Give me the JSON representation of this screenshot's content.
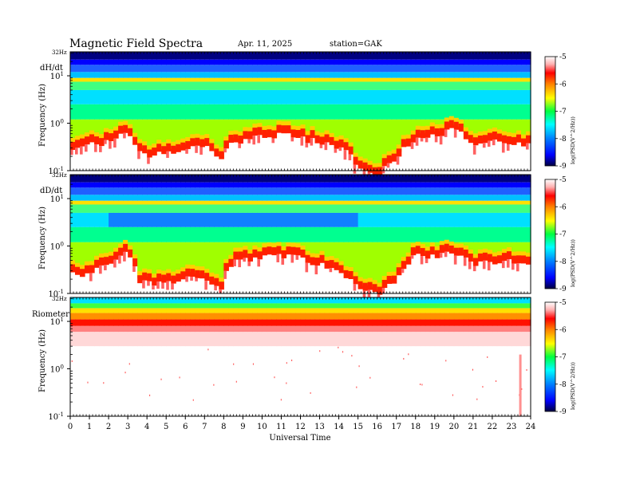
{
  "header": {
    "title": "Magnetic  Field  Spectra",
    "date": "Apr. 11, 2025",
    "station": "station=GAK"
  },
  "xaxis": {
    "label": "Universal  Time",
    "ticks": [
      "0",
      "1",
      "2",
      "3",
      "4",
      "5",
      "6",
      "7",
      "8",
      "9",
      "10",
      "11",
      "12",
      "13",
      "14",
      "15",
      "16",
      "17",
      "18",
      "19",
      "20",
      "21",
      "22",
      "23",
      "24"
    ]
  },
  "yaxis": {
    "label": "Frequency  (Hz)",
    "top_label": "32Hz",
    "ticks": [
      {
        "base": "10",
        "exp": "1"
      },
      {
        "base": "10",
        "exp": "0"
      },
      {
        "base": "10",
        "exp": "-1"
      }
    ]
  },
  "colorbar": {
    "ticks": [
      "-5",
      "-6",
      "-7",
      "-8",
      "-9"
    ],
    "title": "log(PSD(V^2/Hz))",
    "colors": [
      "#000080",
      "#0000ff",
      "#00a0ff",
      "#00ffff",
      "#00ff66",
      "#66ff00",
      "#ffff00",
      "#ff9900",
      "#ff0000",
      "#ffb0b0",
      "#ffffff"
    ]
  },
  "chart_data": [
    {
      "type": "heatmap",
      "panel": "dH/dt",
      "x_unit": "hours UT",
      "xlim": [
        0,
        24
      ],
      "ylim_hz": [
        0.1,
        32
      ],
      "y_scale": "log",
      "zlim": [
        -9,
        -5
      ],
      "z_label": "log(PSD(V^2/Hz))",
      "approx_boundary_freq_hz": {
        "hours": [
          0,
          1,
          2,
          2.5,
          3,
          3.5,
          4,
          5,
          6,
          7,
          7.8,
          8.5,
          9.5,
          10.5,
          11,
          12,
          13,
          14,
          15,
          16,
          17,
          18,
          19,
          20,
          21,
          22,
          23,
          24
        ],
        "freq": [
          0.4,
          0.45,
          0.5,
          0.6,
          0.9,
          0.3,
          0.25,
          0.3,
          0.35,
          0.4,
          0.2,
          0.5,
          0.6,
          0.7,
          0.75,
          0.6,
          0.5,
          0.4,
          0.15,
          0.1,
          0.2,
          0.6,
          0.7,
          0.9,
          0.5,
          0.55,
          0.5,
          0.45
        ]
      }
    },
    {
      "type": "heatmap",
      "panel": "dD/dt",
      "x_unit": "hours UT",
      "xlim": [
        0,
        24
      ],
      "ylim_hz": [
        0.1,
        32
      ],
      "y_scale": "log",
      "zlim": [
        -9,
        -5
      ],
      "z_label": "log(PSD(V^2/Hz))",
      "approx_boundary_freq_hz": {
        "hours": [
          0,
          1,
          2,
          2.5,
          3,
          3.5,
          4,
          5,
          6,
          7,
          7.8,
          8.5,
          9.5,
          10.5,
          11,
          12,
          13,
          14,
          15,
          16,
          17,
          18,
          19,
          20,
          21,
          22,
          23,
          24
        ],
        "freq": [
          0.3,
          0.35,
          0.5,
          0.7,
          0.9,
          0.25,
          0.2,
          0.2,
          0.25,
          0.3,
          0.12,
          0.6,
          0.7,
          0.75,
          0.8,
          0.7,
          0.5,
          0.4,
          0.15,
          0.12,
          0.25,
          0.8,
          0.8,
          0.9,
          0.5,
          0.6,
          0.6,
          0.5
        ]
      }
    },
    {
      "type": "heatmap",
      "panel": "Riometer",
      "x_unit": "hours UT",
      "xlim": [
        0,
        24
      ],
      "ylim_hz": [
        0.1,
        32
      ],
      "y_scale": "log",
      "zlim": [
        -9,
        -5
      ],
      "z_label": "log(PSD(V^2/Hz))",
      "approx_boundary_freq_hz": {
        "hours": [
          0,
          6,
          12,
          18,
          24
        ],
        "freq": [
          8,
          8,
          8,
          8,
          8
        ]
      }
    }
  ]
}
